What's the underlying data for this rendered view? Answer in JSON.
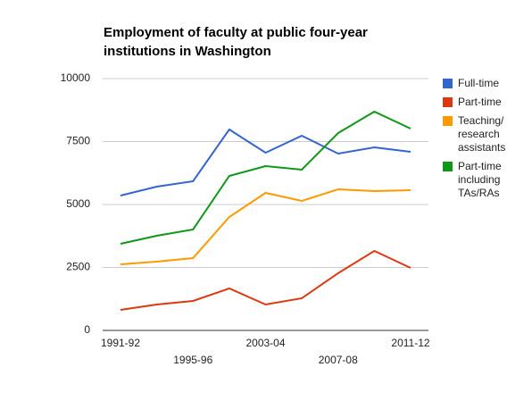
{
  "chart_data": {
    "type": "line",
    "title": "Employment of faculty at public four-year institutions in Washington",
    "categories": [
      "1991-92",
      null,
      "1995-96",
      null,
      "2003-04",
      null,
      "2007-08",
      null,
      "2011-12"
    ],
    "series": [
      {
        "name": "Full-time",
        "color": "#3366cc",
        "values": [
          5355,
          5709,
          5922,
          7979,
          7057,
          7730,
          7021,
          7270,
          7092
        ]
      },
      {
        "name": "Part-time",
        "color": "#dc3912",
        "values": [
          816,
          1028,
          1170,
          1667,
          1028,
          1277,
          2270,
          3156,
          2482
        ]
      },
      {
        "name": "Teaching/ research assistants",
        "color": "#ff9900",
        "values": [
          2624,
          2730,
          2872,
          4504,
          5461,
          5142,
          5603,
          5532,
          5567
        ]
      },
      {
        "name": "Part-time including TAs/RAs",
        "color": "#109618",
        "values": [
          3440,
          3759,
          4007,
          6135,
          6525,
          6383,
          7837,
          8688,
          8014
        ]
      }
    ],
    "ylim": [
      0,
      10000
    ],
    "yticks": [
      0,
      2500,
      5000,
      7500,
      10000
    ],
    "grid": true,
    "legend": "right"
  }
}
